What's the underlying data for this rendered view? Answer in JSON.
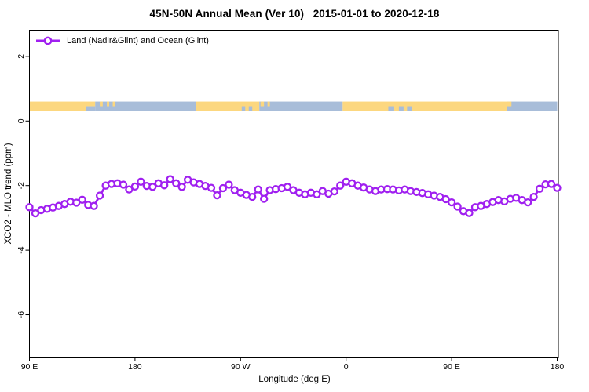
{
  "title": "45N-50N Annual Mean (Ver 10)   2015-01-01 to 2020-12-18",
  "legend": {
    "label": "Land (Nadir&Glint) and Ocean (Glint)"
  },
  "colors": {
    "series": "#A020F0",
    "marker_fill": "#FFFFFF",
    "land_band": "#FCD77F",
    "ocean_band": "#A8BDD9",
    "axis": "#000000"
  },
  "chart_data": {
    "type": "line",
    "title": "45N-50N Annual Mean (Ver 10)   2015-01-01 to 2020-12-18",
    "xlabel": "Longitude (deg E)",
    "ylabel": "XCO2 - MLO trend (ppm)",
    "xlim": [
      90,
      540
    ],
    "ylim": [
      -7.31,
      2.81
    ],
    "grid": false,
    "legend_position": "top-left-inside",
    "x_ticks": [
      {
        "value": 90,
        "label": "90 E"
      },
      {
        "value": 180,
        "label": "180"
      },
      {
        "value": 270,
        "label": "90 W"
      },
      {
        "value": 360,
        "label": "0"
      },
      {
        "value": 450,
        "label": "90 E"
      },
      {
        "value": 540,
        "label": "180"
      }
    ],
    "y_ticks": [
      {
        "value": 2,
        "label": "2"
      },
      {
        "value": 0,
        "label": "0"
      },
      {
        "value": -2,
        "label": "-2"
      },
      {
        "value": -4,
        "label": "-4"
      },
      {
        "value": -6,
        "label": "-6"
      }
    ],
    "series": [
      {
        "name": "Land (Nadir&Glint) and Ocean (Glint)",
        "marker": "open-circle",
        "x": [
          90,
          95,
          100,
          105,
          110,
          115,
          120,
          125,
          130,
          135,
          140,
          145,
          150,
          155,
          160,
          165,
          170,
          175,
          180,
          185,
          190,
          195,
          200,
          205,
          210,
          215,
          220,
          225,
          230,
          235,
          240,
          245,
          250,
          255,
          260,
          265,
          270,
          275,
          280,
          285,
          290,
          295,
          300,
          305,
          310,
          315,
          320,
          325,
          330,
          335,
          340,
          345,
          350,
          355,
          360,
          365,
          370,
          375,
          380,
          385,
          390,
          395,
          400,
          405,
          410,
          415,
          420,
          425,
          430,
          435,
          440,
          445,
          450,
          455,
          460,
          465,
          470,
          475,
          480,
          485,
          490,
          495,
          500,
          505,
          510,
          515,
          520,
          525,
          530,
          535,
          540
        ],
        "y": [
          -2.67,
          -2.86,
          -2.76,
          -2.72,
          -2.68,
          -2.63,
          -2.57,
          -2.5,
          -2.53,
          -2.44,
          -2.6,
          -2.63,
          -2.31,
          -2.0,
          -1.95,
          -1.93,
          -1.97,
          -2.12,
          -2.03,
          -1.88,
          -2.01,
          -2.04,
          -1.93,
          -1.99,
          -1.8,
          -1.93,
          -2.04,
          -1.82,
          -1.9,
          -1.95,
          -2.01,
          -2.07,
          -2.3,
          -2.08,
          -1.97,
          -2.14,
          -2.22,
          -2.29,
          -2.35,
          -2.12,
          -2.41,
          -2.14,
          -2.11,
          -2.08,
          -2.04,
          -2.14,
          -2.22,
          -2.27,
          -2.22,
          -2.27,
          -2.17,
          -2.25,
          -2.18,
          -2.0,
          -1.88,
          -1.93,
          -2.0,
          -2.06,
          -2.12,
          -2.17,
          -2.12,
          -2.11,
          -2.12,
          -2.15,
          -2.12,
          -2.17,
          -2.2,
          -2.23,
          -2.27,
          -2.31,
          -2.35,
          -2.42,
          -2.52,
          -2.65,
          -2.79,
          -2.85,
          -2.67,
          -2.63,
          -2.57,
          -2.51,
          -2.45,
          -2.49,
          -2.41,
          -2.38,
          -2.45,
          -2.52,
          -2.35,
          -2.1,
          -1.96,
          -1.95,
          -2.07
        ]
      }
    ],
    "land_ocean_band": {
      "description": "strip map of 45N-50N latitude band: land vs ocean by longitude",
      "y_range": [
        0.31,
        0.6
      ],
      "segments": [
        {
          "from": 90,
          "to": 138,
          "surface": "land",
          "row": "both"
        },
        {
          "from": 232,
          "to": 286,
          "surface": "land",
          "row": "both"
        },
        {
          "from": 357,
          "to": 497,
          "surface": "land",
          "row": "both"
        },
        {
          "from": 146,
          "to": 232,
          "surface": "ocean",
          "row": "both"
        },
        {
          "from": 286,
          "to": 357,
          "surface": "ocean",
          "row": "both"
        },
        {
          "from": 497,
          "to": 540,
          "surface": "ocean",
          "row": "both"
        },
        {
          "from": 138,
          "to": 146,
          "surface": "land",
          "row": "top"
        },
        {
          "from": 138,
          "to": 146,
          "surface": "ocean",
          "row": "bottom"
        },
        {
          "from": 150,
          "to": 152.5,
          "surface": "land",
          "row": "top"
        },
        {
          "from": 156,
          "to": 158,
          "surface": "land",
          "row": "top"
        },
        {
          "from": 161,
          "to": 163,
          "surface": "land",
          "row": "top"
        },
        {
          "from": 271,
          "to": 274,
          "surface": "ocean",
          "row": "bottom"
        },
        {
          "from": 277,
          "to": 280,
          "surface": "ocean",
          "row": "bottom"
        },
        {
          "from": 287,
          "to": 290,
          "surface": "land",
          "row": "top"
        },
        {
          "from": 293,
          "to": 295,
          "surface": "land",
          "row": "top"
        },
        {
          "from": 396,
          "to": 401,
          "surface": "ocean",
          "row": "bottom"
        },
        {
          "from": 405,
          "to": 409,
          "surface": "ocean",
          "row": "bottom"
        },
        {
          "from": 412,
          "to": 416,
          "surface": "ocean",
          "row": "bottom"
        },
        {
          "from": 497,
          "to": 501,
          "surface": "land",
          "row": "top"
        }
      ]
    }
  }
}
